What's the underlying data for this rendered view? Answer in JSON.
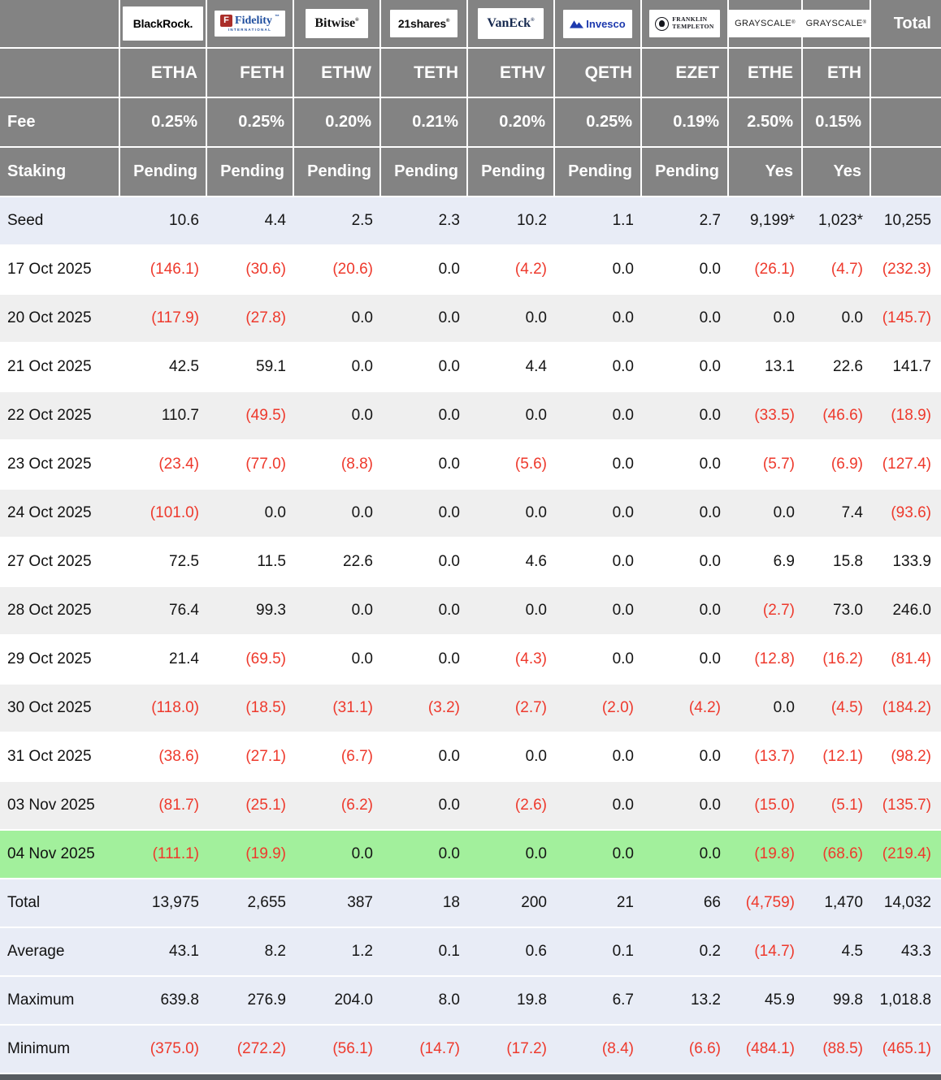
{
  "table": {
    "fee_label": "Fee",
    "staking_label": "Staking",
    "total_label": "Total",
    "columns": [
      {
        "issuer": "BlackRock",
        "logo": "blackrock",
        "ticker": "ETHA",
        "fee": "0.25%",
        "staking": "Pending"
      },
      {
        "issuer": "Fidelity",
        "logo": "fidelity",
        "ticker": "FETH",
        "fee": "0.25%",
        "staking": "Pending"
      },
      {
        "issuer": "Bitwise",
        "logo": "bitwise",
        "ticker": "ETHW",
        "fee": "0.20%",
        "staking": "Pending"
      },
      {
        "issuer": "21shares",
        "logo": "shares21",
        "ticker": "TETH",
        "fee": "0.21%",
        "staking": "Pending"
      },
      {
        "issuer": "VanEck",
        "logo": "vaneck",
        "ticker": "ETHV",
        "fee": "0.20%",
        "staking": "Pending"
      },
      {
        "issuer": "Invesco",
        "logo": "invesco",
        "ticker": "QETH",
        "fee": "0.25%",
        "staking": "Pending"
      },
      {
        "issuer": "Franklin Templeton",
        "logo": "franklin",
        "ticker": "EZET",
        "fee": "0.19%",
        "staking": "Pending"
      },
      {
        "issuer": "Grayscale",
        "logo": "grayscale",
        "ticker": "ETHE",
        "fee": "2.50%",
        "staking": "Yes"
      },
      {
        "issuer": "Grayscale",
        "logo": "grayscale",
        "ticker": "ETH",
        "fee": "0.15%",
        "staking": "Yes"
      }
    ],
    "logos": {
      "blackrock": {
        "text": "BlackRock."
      },
      "fidelity": {
        "icon_letter": "F",
        "text": "Fidelity",
        "tm": "™",
        "subtext": "INTERNATIONAL",
        "icon_color": "#aa2e2a",
        "text_color": "#1f4e9e"
      },
      "bitwise": {
        "text": "Bitwise",
        "reg": "®"
      },
      "shares21": {
        "text": "21shares",
        "reg": "®"
      },
      "vaneck": {
        "text": "VanEck",
        "reg": "®",
        "color": "#16294f"
      },
      "invesco": {
        "text": "Invesco",
        "color": "#1e3aae"
      },
      "franklin": {
        "line1": "FRANKLIN",
        "line2": "TEMPLETON"
      },
      "grayscale": {
        "text": "GRAYSCALE",
        "reg": "®"
      }
    },
    "rows": [
      {
        "label": "Seed",
        "bg": "blue",
        "values": [
          "10.6",
          "4.4",
          "2.5",
          "2.3",
          "10.2",
          "1.1",
          "2.7",
          "9,199*",
          "1,023*",
          "10,255"
        ]
      },
      {
        "label": "17 Oct 2025",
        "bg": "white",
        "values": [
          "(146.1)",
          "(30.6)",
          "(20.6)",
          "0.0",
          "(4.2)",
          "0.0",
          "0.0",
          "(26.1)",
          "(4.7)",
          "(232.3)"
        ]
      },
      {
        "label": "20 Oct 2025",
        "bg": "gray",
        "values": [
          "(117.9)",
          "(27.8)",
          "0.0",
          "0.0",
          "0.0",
          "0.0",
          "0.0",
          "0.0",
          "0.0",
          "(145.7)"
        ]
      },
      {
        "label": "21 Oct 2025",
        "bg": "white",
        "values": [
          "42.5",
          "59.1",
          "0.0",
          "0.0",
          "4.4",
          "0.0",
          "0.0",
          "13.1",
          "22.6",
          "141.7"
        ]
      },
      {
        "label": "22 Oct 2025",
        "bg": "gray",
        "values": [
          "110.7",
          "(49.5)",
          "0.0",
          "0.0",
          "0.0",
          "0.0",
          "0.0",
          "(33.5)",
          "(46.6)",
          "(18.9)"
        ]
      },
      {
        "label": "23 Oct 2025",
        "bg": "white",
        "values": [
          "(23.4)",
          "(77.0)",
          "(8.8)",
          "0.0",
          "(5.6)",
          "0.0",
          "0.0",
          "(5.7)",
          "(6.9)",
          "(127.4)"
        ]
      },
      {
        "label": "24 Oct 2025",
        "bg": "gray",
        "values": [
          "(101.0)",
          "0.0",
          "0.0",
          "0.0",
          "0.0",
          "0.0",
          "0.0",
          "0.0",
          "7.4",
          "(93.6)"
        ]
      },
      {
        "label": "27 Oct 2025",
        "bg": "white",
        "values": [
          "72.5",
          "11.5",
          "22.6",
          "0.0",
          "4.6",
          "0.0",
          "0.0",
          "6.9",
          "15.8",
          "133.9"
        ]
      },
      {
        "label": "28 Oct 2025",
        "bg": "gray",
        "values": [
          "76.4",
          "99.3",
          "0.0",
          "0.0",
          "0.0",
          "0.0",
          "0.0",
          "(2.7)",
          "73.0",
          "246.0"
        ]
      },
      {
        "label": "29 Oct 2025",
        "bg": "white",
        "values": [
          "21.4",
          "(69.5)",
          "0.0",
          "0.0",
          "(4.3)",
          "0.0",
          "0.0",
          "(12.8)",
          "(16.2)",
          "(81.4)"
        ]
      },
      {
        "label": "30 Oct 2025",
        "bg": "gray",
        "values": [
          "(118.0)",
          "(18.5)",
          "(31.1)",
          "(3.2)",
          "(2.7)",
          "(2.0)",
          "(4.2)",
          "0.0",
          "(4.5)",
          "(184.2)"
        ]
      },
      {
        "label": "31 Oct 2025",
        "bg": "white",
        "values": [
          "(38.6)",
          "(27.1)",
          "(6.7)",
          "0.0",
          "0.0",
          "0.0",
          "0.0",
          "(13.7)",
          "(12.1)",
          "(98.2)"
        ]
      },
      {
        "label": "03 Nov 2025",
        "bg": "gray",
        "values": [
          "(81.7)",
          "(25.1)",
          "(6.2)",
          "0.0",
          "(2.6)",
          "0.0",
          "0.0",
          "(15.0)",
          "(5.1)",
          "(135.7)"
        ]
      },
      {
        "label": "04 Nov 2025",
        "bg": "green",
        "values": [
          "(111.1)",
          "(19.9)",
          "0.0",
          "0.0",
          "0.0",
          "0.0",
          "0.0",
          "(19.8)",
          "(68.6)",
          "(219.4)"
        ]
      },
      {
        "label": "Total",
        "bg": "blue",
        "values": [
          "13,975",
          "2,655",
          "387",
          "18",
          "200",
          "21",
          "66",
          "(4,759)",
          "1,470",
          "14,032"
        ]
      },
      {
        "label": "Average",
        "bg": "blue",
        "values": [
          "43.1",
          "8.2",
          "1.2",
          "0.1",
          "0.6",
          "0.1",
          "0.2",
          "(14.7)",
          "4.5",
          "43.3"
        ]
      },
      {
        "label": "Maximum",
        "bg": "blue",
        "values": [
          "639.8",
          "276.9",
          "204.0",
          "8.0",
          "19.8",
          "6.7",
          "13.2",
          "45.9",
          "99.8",
          "1,018.8"
        ]
      },
      {
        "label": "Minimum",
        "bg": "blue",
        "values": [
          "(375.0)",
          "(272.2)",
          "(56.1)",
          "(14.7)",
          "(17.2)",
          "(8.4)",
          "(6.6)",
          "(484.1)",
          "(88.5)",
          "(465.1)"
        ]
      }
    ]
  },
  "colors": {
    "header_background": "#838383",
    "blue_row_background": "#e8ecf6",
    "gray_row_background": "#efefef",
    "green_highlight_background": "#a2f09c",
    "negative_red": "#ee392c"
  }
}
